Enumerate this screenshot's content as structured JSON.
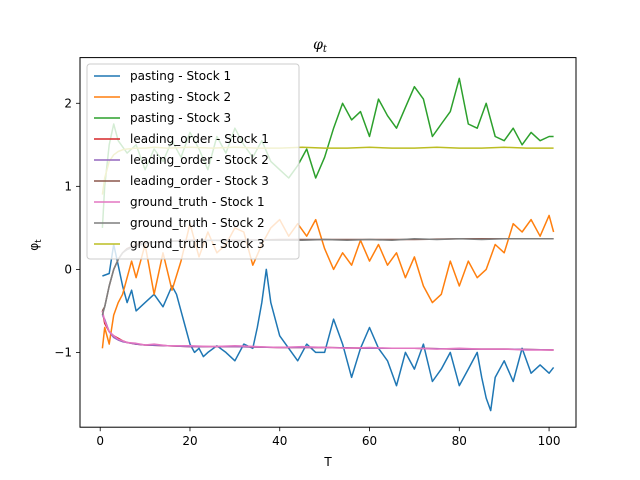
{
  "chart_data": {
    "type": "line",
    "title": "φ",
    "title_sub": "t",
    "xlabel": "T",
    "ylabel": "φ",
    "ylabel_sub": "t",
    "xlim": [
      -4.5,
      106
    ],
    "ylim": [
      -1.9,
      2.55
    ],
    "xticks": [
      0,
      20,
      40,
      60,
      80,
      100
    ],
    "yticks": [
      -1,
      0,
      1,
      2
    ],
    "legend_position": "upper-left",
    "grid": false,
    "series": [
      {
        "name": "pasting - Stock 1",
        "color": "#1f77b4",
        "x": [
          0.5,
          2,
          3,
          4,
          5,
          6,
          7,
          8,
          10,
          12,
          14,
          16,
          17,
          18,
          19,
          20,
          21,
          22,
          23,
          24,
          26,
          28,
          30,
          32,
          34,
          35,
          36,
          37,
          38,
          40,
          42,
          44,
          46,
          48,
          50,
          52,
          54,
          56,
          58,
          60,
          62,
          64,
          66,
          68,
          70,
          72,
          74,
          76,
          78,
          80,
          82,
          84,
          85,
          86,
          87,
          88,
          90,
          92,
          94,
          96,
          98,
          100,
          101
        ],
        "y": [
          -0.08,
          -0.05,
          0.3,
          0.05,
          -0.2,
          -0.4,
          -0.25,
          -0.5,
          -0.4,
          -0.3,
          -0.45,
          -0.2,
          -0.3,
          -0.5,
          -0.7,
          -0.9,
          -1.0,
          -0.95,
          -1.05,
          -1.0,
          -0.92,
          -1.0,
          -1.1,
          -0.9,
          -0.95,
          -0.7,
          -0.4,
          0.0,
          -0.4,
          -0.8,
          -0.95,
          -1.1,
          -0.9,
          -1.0,
          -1.0,
          -0.6,
          -0.9,
          -1.3,
          -0.95,
          -0.7,
          -0.95,
          -1.1,
          -1.4,
          -1.0,
          -1.2,
          -0.9,
          -1.35,
          -1.2,
          -1.0,
          -1.4,
          -1.2,
          -1.0,
          -1.3,
          -1.55,
          -1.7,
          -1.3,
          -1.1,
          -1.35,
          -0.95,
          -1.25,
          -1.15,
          -1.25,
          -1.18
        ]
      },
      {
        "name": "pasting - Stock 2",
        "color": "#ff7f0e",
        "x": [
          0.5,
          1,
          2,
          3,
          4,
          5,
          6,
          7,
          8,
          10,
          12,
          14,
          16,
          18,
          20,
          22,
          24,
          26,
          28,
          30,
          32,
          34,
          36,
          38,
          40,
          42,
          44,
          46,
          48,
          50,
          52,
          54,
          56,
          58,
          60,
          62,
          64,
          66,
          68,
          70,
          72,
          74,
          76,
          78,
          80,
          82,
          84,
          86,
          88,
          90,
          92,
          94,
          96,
          98,
          100,
          101
        ],
        "y": [
          -0.95,
          -0.7,
          -0.9,
          -0.55,
          -0.4,
          -0.3,
          -0.1,
          0.1,
          -0.1,
          0.3,
          -0.3,
          0.2,
          -0.25,
          0.1,
          0.55,
          0.15,
          0.45,
          0.2,
          0.3,
          0.5,
          0.45,
          0.05,
          0.3,
          0.5,
          0.6,
          0.4,
          0.55,
          0.4,
          0.6,
          0.25,
          0.0,
          0.2,
          0.05,
          0.35,
          0.1,
          0.3,
          0.05,
          0.2,
          -0.1,
          0.15,
          -0.2,
          -0.4,
          -0.3,
          0.1,
          -0.2,
          0.1,
          -0.1,
          0.0,
          0.3,
          0.2,
          0.55,
          0.45,
          0.6,
          0.4,
          0.65,
          0.45
        ]
      },
      {
        "name": "pasting - Stock 3",
        "color": "#2ca02c",
        "x": [
          0.5,
          1,
          2,
          3,
          4,
          6,
          8,
          10,
          12,
          14,
          16,
          18,
          20,
          22,
          24,
          26,
          28,
          30,
          32,
          34,
          36,
          38,
          40,
          42,
          44,
          46,
          48,
          50,
          52,
          54,
          56,
          58,
          60,
          62,
          64,
          66,
          68,
          70,
          72,
          74,
          76,
          78,
          80,
          82,
          84,
          86,
          88,
          90,
          92,
          94,
          96,
          98,
          100,
          101
        ],
        "y": [
          0.5,
          1.0,
          1.5,
          1.75,
          1.55,
          1.4,
          1.5,
          1.2,
          1.45,
          1.3,
          1.55,
          1.35,
          1.65,
          1.45,
          1.2,
          1.6,
          1.4,
          1.7,
          1.5,
          1.35,
          1.55,
          1.3,
          1.2,
          1.1,
          1.25,
          1.45,
          1.1,
          1.35,
          1.7,
          2.0,
          1.8,
          1.9,
          1.6,
          2.05,
          1.85,
          1.7,
          1.95,
          2.2,
          2.05,
          1.6,
          1.75,
          1.9,
          2.3,
          1.75,
          1.7,
          2.0,
          1.6,
          1.55,
          1.7,
          1.5,
          1.65,
          1.55,
          1.6,
          1.6
        ]
      },
      {
        "name": "leading_order - Stock 1",
        "color": "#d62728",
        "x": [
          0.5,
          1,
          2,
          3,
          4,
          5,
          6,
          8,
          10,
          15,
          20,
          30,
          40,
          50,
          60,
          70,
          80,
          90,
          101
        ],
        "y": [
          -0.5,
          -0.65,
          -0.75,
          -0.8,
          -0.83,
          -0.86,
          -0.88,
          -0.9,
          -0.91,
          -0.92,
          -0.93,
          -0.93,
          -0.94,
          -0.94,
          -0.95,
          -0.95,
          -0.96,
          -0.96,
          -0.97
        ]
      },
      {
        "name": "leading_order - Stock 2",
        "color": "#9467bd",
        "x": [
          0.5,
          1,
          2,
          3,
          4,
          5,
          6,
          8,
          10,
          15,
          20,
          30,
          40,
          50,
          60,
          70,
          80,
          90,
          101
        ],
        "y": [
          -0.55,
          -0.6,
          -0.75,
          -0.82,
          -0.85,
          -0.87,
          -0.88,
          -0.9,
          -0.91,
          -0.92,
          -0.93,
          -0.93,
          -0.94,
          -0.94,
          -0.95,
          -0.95,
          -0.96,
          -0.96,
          -0.97
        ]
      },
      {
        "name": "leading_order - Stock 3",
        "color": "#8c564b",
        "x": [
          0.5,
          1,
          2,
          3,
          4,
          5,
          6,
          8,
          10,
          15,
          20,
          30,
          40,
          50,
          60,
          70,
          80,
          90,
          101
        ],
        "y": [
          -0.5,
          -0.45,
          -0.2,
          0.0,
          0.12,
          0.2,
          0.25,
          0.3,
          0.32,
          0.34,
          0.35,
          0.35,
          0.36,
          0.36,
          0.36,
          0.36,
          0.37,
          0.37,
          0.37
        ]
      },
      {
        "name": "ground_truth - Stock 1",
        "color": "#e377c2",
        "x": [
          0.5,
          1,
          2,
          3,
          4,
          5,
          6,
          8,
          10,
          12,
          15,
          20,
          25,
          30,
          35,
          40,
          45,
          50,
          55,
          60,
          65,
          70,
          75,
          80,
          85,
          90,
          95,
          101
        ],
        "y": [
          -0.5,
          -0.62,
          -0.75,
          -0.8,
          -0.84,
          -0.86,
          -0.88,
          -0.89,
          -0.91,
          -0.9,
          -0.92,
          -0.92,
          -0.93,
          -0.92,
          -0.93,
          -0.94,
          -0.93,
          -0.94,
          -0.95,
          -0.94,
          -0.95,
          -0.95,
          -0.96,
          -0.95,
          -0.96,
          -0.96,
          -0.97,
          -0.97
        ]
      },
      {
        "name": "ground_truth - Stock 2",
        "color": "#7f7f7f",
        "x": [
          0.5,
          1,
          2,
          3,
          4,
          5,
          6,
          8,
          10,
          12,
          15,
          20,
          25,
          30,
          35,
          40,
          45,
          50,
          55,
          60,
          65,
          70,
          75,
          80,
          85,
          90,
          95,
          101
        ],
        "y": [
          -0.55,
          -0.45,
          -0.2,
          0.0,
          0.12,
          0.2,
          0.24,
          0.28,
          0.31,
          0.33,
          0.34,
          0.34,
          0.35,
          0.34,
          0.35,
          0.35,
          0.35,
          0.36,
          0.35,
          0.36,
          0.35,
          0.37,
          0.36,
          0.37,
          0.36,
          0.37,
          0.37,
          0.37
        ]
      },
      {
        "name": "ground_truth - Stock 3",
        "color": "#bcbd22",
        "x": [
          0.5,
          1,
          2,
          3,
          4,
          5,
          6,
          8,
          10,
          12,
          15,
          20,
          25,
          30,
          35,
          40,
          45,
          50,
          55,
          60,
          65,
          70,
          75,
          80,
          85,
          90,
          95,
          101
        ],
        "y": [
          0.9,
          1.1,
          1.3,
          1.38,
          1.42,
          1.44,
          1.45,
          1.46,
          1.46,
          1.47,
          1.46,
          1.47,
          1.46,
          1.47,
          1.46,
          1.46,
          1.47,
          1.46,
          1.46,
          1.47,
          1.46,
          1.46,
          1.47,
          1.46,
          1.46,
          1.47,
          1.46,
          1.46
        ]
      }
    ]
  }
}
